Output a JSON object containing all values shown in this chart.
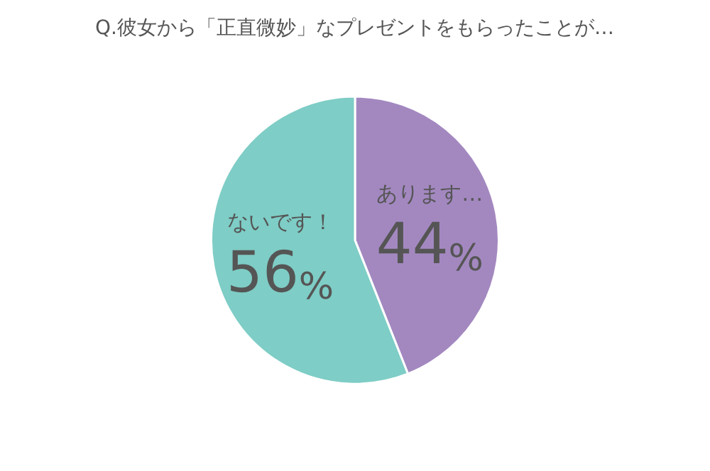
{
  "chart_data": {
    "type": "pie",
    "title": "Q.彼女から「正直微妙」なプレゼントをもらったことが…",
    "categories": [
      "あります…",
      "ないです！"
    ],
    "values": [
      44,
      56
    ],
    "colors": [
      "#a388c0",
      "#7ecdc6"
    ],
    "value_labels": [
      "44%",
      "56%"
    ],
    "legend": false
  }
}
